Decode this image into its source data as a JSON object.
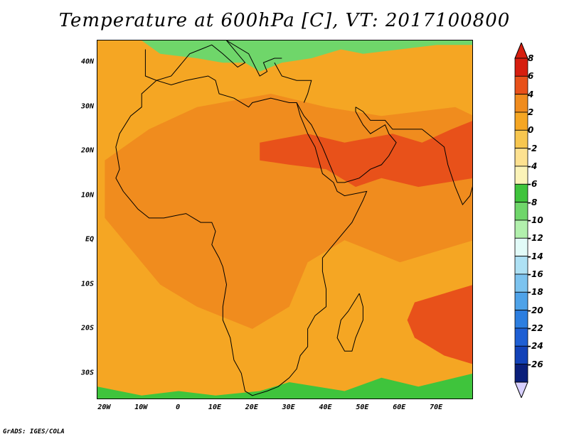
{
  "title": "Temperature at 600hPa [C], VT: 2017100800",
  "credit": "GrADS: IGES/COLA",
  "map": {
    "projection": "latlon",
    "lon_range": [
      -22,
      80
    ],
    "lat_range": [
      -36,
      45
    ],
    "y_ticks": [
      {
        "lat": 40,
        "label": "40N"
      },
      {
        "lat": 30,
        "label": "30N"
      },
      {
        "lat": 20,
        "label": "20N"
      },
      {
        "lat": 10,
        "label": "10N"
      },
      {
        "lat": 0,
        "label": "EQ"
      },
      {
        "lat": -10,
        "label": "10S"
      },
      {
        "lat": -20,
        "label": "20S"
      },
      {
        "lat": -30,
        "label": "30S"
      }
    ],
    "x_ticks": [
      {
        "lon": -20,
        "label": "20W"
      },
      {
        "lon": -10,
        "label": "10W"
      },
      {
        "lon": 0,
        "label": "0"
      },
      {
        "lon": 10,
        "label": "10E"
      },
      {
        "lon": 20,
        "label": "20E"
      },
      {
        "lon": 30,
        "label": "30E"
      },
      {
        "lon": 40,
        "label": "40E"
      },
      {
        "lon": 50,
        "label": "50E"
      },
      {
        "lon": 60,
        "label": "60E"
      },
      {
        "lon": 70,
        "label": "70E"
      }
    ],
    "background_level_color": "#f5a623",
    "regions": [
      {
        "name": "saharan-warm",
        "color": "#f08c1e"
      },
      {
        "name": "arabian-warm",
        "color": "#e8511a"
      },
      {
        "name": "mascarene-warm",
        "color": "#e8511a"
      },
      {
        "name": "mediterranean-cool",
        "color": "#6fd66a"
      },
      {
        "name": "southern-ocean-cool",
        "color": "#3fc43c"
      }
    ]
  },
  "colorbar": {
    "levels": [
      {
        "label": "8",
        "color": "#d61e0f"
      },
      {
        "label": "6",
        "color": "#e8511a"
      },
      {
        "label": "4",
        "color": "#f08c1e"
      },
      {
        "label": "2",
        "color": "#f5a623"
      },
      {
        "label": "0",
        "color": "#f7c64f"
      },
      {
        "label": "-2",
        "color": "#fde190"
      },
      {
        "label": "-4",
        "color": "#fbf3b8"
      },
      {
        "label": "-6",
        "color": "#3fc43c"
      },
      {
        "label": "-8",
        "color": "#6fd66a"
      },
      {
        "label": "-10",
        "color": "#b2f0ad"
      },
      {
        "label": "-12",
        "color": "#e2fbf8"
      },
      {
        "label": "-14",
        "color": "#aee1f4"
      },
      {
        "label": "-16",
        "color": "#7cc3ef"
      },
      {
        "label": "-18",
        "color": "#4ea2e8"
      },
      {
        "label": "-20",
        "color": "#2c7ee0"
      },
      {
        "label": "-22",
        "color": "#1e5fd4"
      },
      {
        "label": "-24",
        "color": "#1242b8"
      },
      {
        "label": "-26",
        "color": "#0a1f7a"
      }
    ],
    "below_color": "#d8d0ff"
  }
}
